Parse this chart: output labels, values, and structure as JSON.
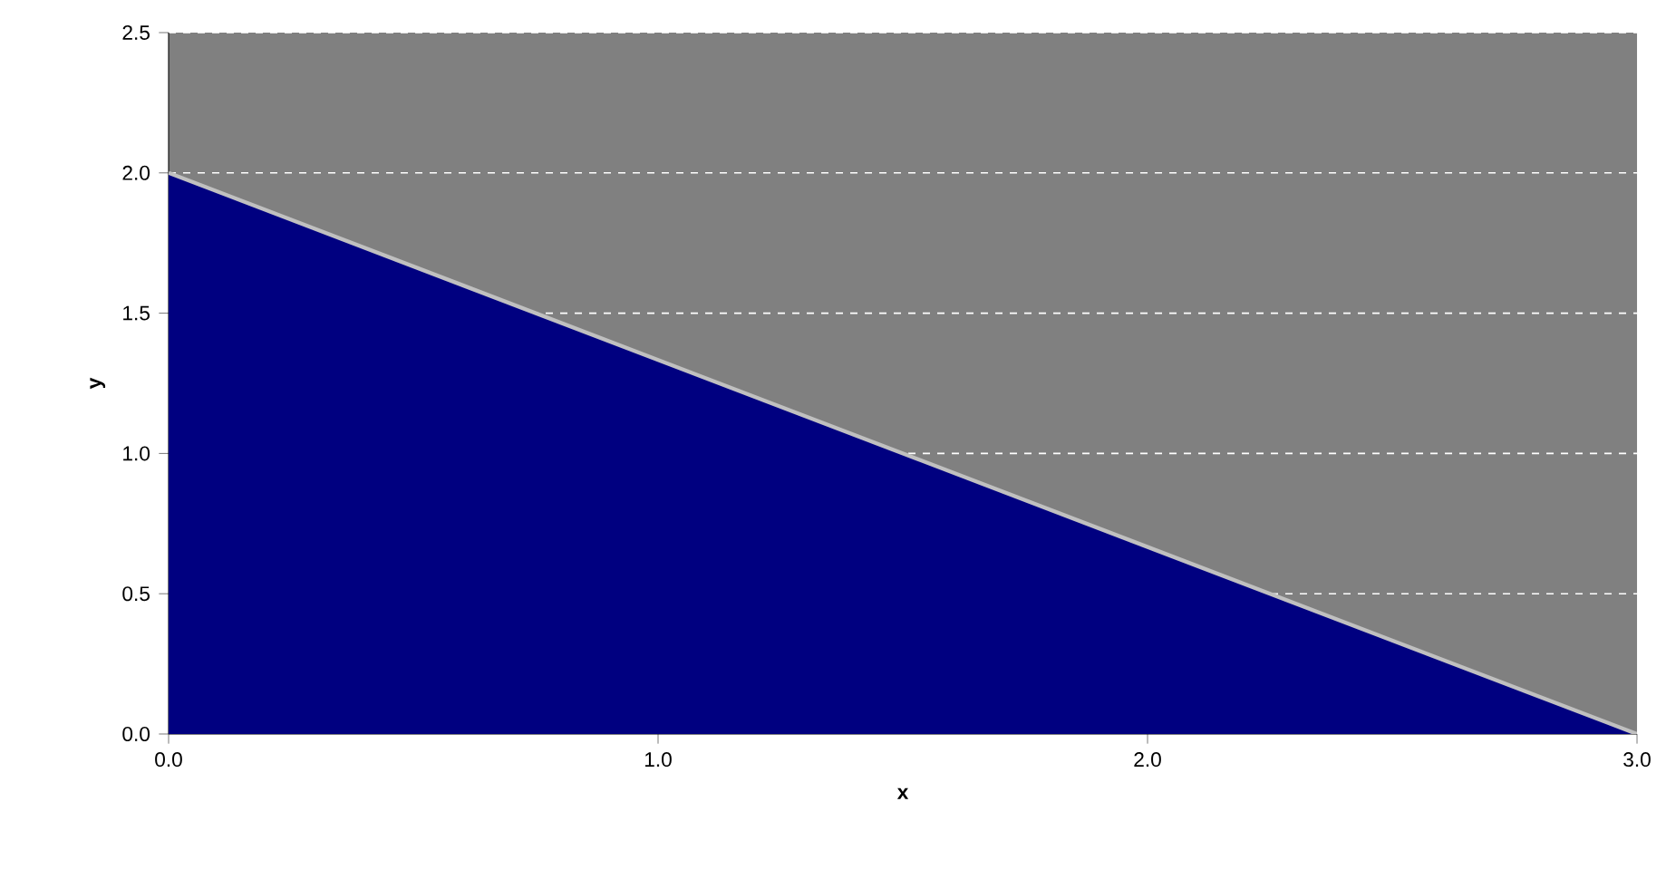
{
  "chart_data": {
    "type": "area",
    "xlabel": "x",
    "ylabel": "y",
    "x": [
      0,
      3
    ],
    "series": [
      {
        "color": "#000080",
        "values": [
          2,
          0
        ]
      }
    ],
    "xlim": [
      0,
      3
    ],
    "ylim": [
      0,
      2.5
    ],
    "xticks": [
      {
        "value": 0,
        "label": "0.0"
      },
      {
        "value": 1,
        "label": "1.0"
      },
      {
        "value": 2,
        "label": "2.0"
      },
      {
        "value": 3,
        "label": "3.0"
      }
    ],
    "yticks": [
      {
        "value": 0,
        "label": "0.0"
      },
      {
        "value": 0.5,
        "label": "0.5"
      },
      {
        "value": 1,
        "label": "1.0"
      },
      {
        "value": 1.5,
        "label": "1.5"
      },
      {
        "value": 2,
        "label": "2.0"
      },
      {
        "value": 2.5,
        "label": "2.5"
      }
    ],
    "grid": "y"
  }
}
